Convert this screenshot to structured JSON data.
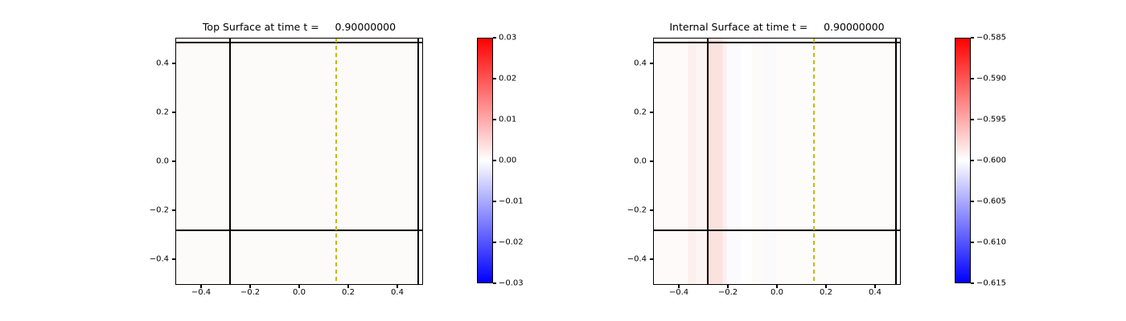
{
  "panels": [
    {
      "name": "top-surface",
      "title": "Top Surface at time t =     0.90000000",
      "x_tick_labels": [
        "−0.4",
        "−0.2",
        "0.0",
        "0.2",
        "0.4"
      ],
      "y_tick_labels": [
        "0.4",
        "0.2",
        "0.0",
        "−0.2",
        "−0.4"
      ],
      "colorbar_tick_labels": [
        "0.03",
        "0.02",
        "0.01",
        "0.00",
        "−0.01",
        "−0.02",
        "−0.03"
      ]
    },
    {
      "name": "internal-surface",
      "title": "Internal Surface at time t =     0.90000000",
      "x_tick_labels": [
        "−0.4",
        "−0.2",
        "0.0",
        "0.2",
        "0.4"
      ],
      "y_tick_labels": [
        "0.4",
        "0.2",
        "0.0",
        "−0.2",
        "−0.4"
      ],
      "colorbar_tick_labels": [
        "−0.585",
        "−0.590",
        "−0.595",
        "−0.600",
        "−0.605",
        "−0.610",
        "−0.615"
      ]
    }
  ],
  "chart_data": [
    {
      "type": "heatmap",
      "title": "Top Surface at time t =     0.90000000",
      "x_range": [
        -0.505,
        0.505
      ],
      "y_range": [
        -0.505,
        0.505
      ],
      "x_ticks": [
        -0.4,
        -0.2,
        0.0,
        0.2,
        0.4
      ],
      "y_ticks": [
        -0.4,
        -0.2,
        0.0,
        0.2,
        0.4
      ],
      "colormap": "bwr (blue-white-red)",
      "colormap_colors": [
        "#0000ff",
        "#ffffff",
        "#ff0000"
      ],
      "colorbar_limits": [
        -0.03,
        0.03
      ],
      "colorbar_ticks": [
        0.03,
        0.02,
        0.01,
        0.0,
        -0.01,
        -0.02,
        -0.03
      ],
      "field_description": "top surface height deviation approximately 0 everywhere (uniform near-white field)",
      "field_color": "#fdfbfa",
      "overlays": {
        "black_vlines": [
          -0.284,
          0.49
        ],
        "black_hlines": [
          -0.284,
          0.49
        ],
        "yellow_dashed_vline": 0.152,
        "yellow_dashed_color": "#c4ba10",
        "black_line_color": "#000000"
      }
    },
    {
      "type": "heatmap",
      "title": "Internal Surface at time t =     0.90000000",
      "x_range": [
        -0.505,
        0.505
      ],
      "y_range": [
        -0.505,
        0.505
      ],
      "x_ticks": [
        -0.4,
        -0.2,
        0.0,
        0.2,
        0.4
      ],
      "y_ticks": [
        -0.4,
        -0.2,
        0.0,
        0.2,
        0.4
      ],
      "colormap": "bwr (blue-white-red)",
      "colormap_colors": [
        "#0000ff",
        "#ffffff",
        "#ff0000"
      ],
      "colorbar_limits": [
        -0.615,
        -0.585
      ],
      "colorbar_ticks": [
        -0.585,
        -0.59,
        -0.595,
        -0.6,
        -0.605,
        -0.61,
        -0.615
      ],
      "field_description": "internal surface depth approximately -0.600 everywhere, slightly above (light red band near -0.597) in a vertical strip around x = -0.25, full height",
      "bands": [
        {
          "from": -0.505,
          "to": -0.364,
          "color": "#fdfaf9"
        },
        {
          "from": -0.364,
          "to": -0.331,
          "color": "#fcefed"
        },
        {
          "from": -0.331,
          "to": -0.289,
          "color": "#fdf5f3"
        },
        {
          "from": -0.289,
          "to": -0.223,
          "color": "#fbe2de"
        },
        {
          "from": -0.223,
          "to": -0.207,
          "color": "#fcefed"
        },
        {
          "from": -0.207,
          "to": -0.151,
          "color": "#fbfbfe"
        },
        {
          "from": -0.151,
          "to": -0.102,
          "color": "#fefefe"
        },
        {
          "from": -0.102,
          "to": -0.053,
          "color": "#fdfbf9"
        },
        {
          "from": -0.053,
          "to": -0.004,
          "color": "#fafafd"
        },
        {
          "from": -0.004,
          "to": 0.505,
          "color": "#fdfcfb"
        }
      ],
      "overlays": {
        "black_vlines": [
          -0.284,
          0.49
        ],
        "black_hlines": [
          -0.284,
          0.49
        ],
        "yellow_dashed_vline": 0.152,
        "yellow_dashed_color": "#c4ba10",
        "black_line_color": "#000000"
      }
    }
  ]
}
